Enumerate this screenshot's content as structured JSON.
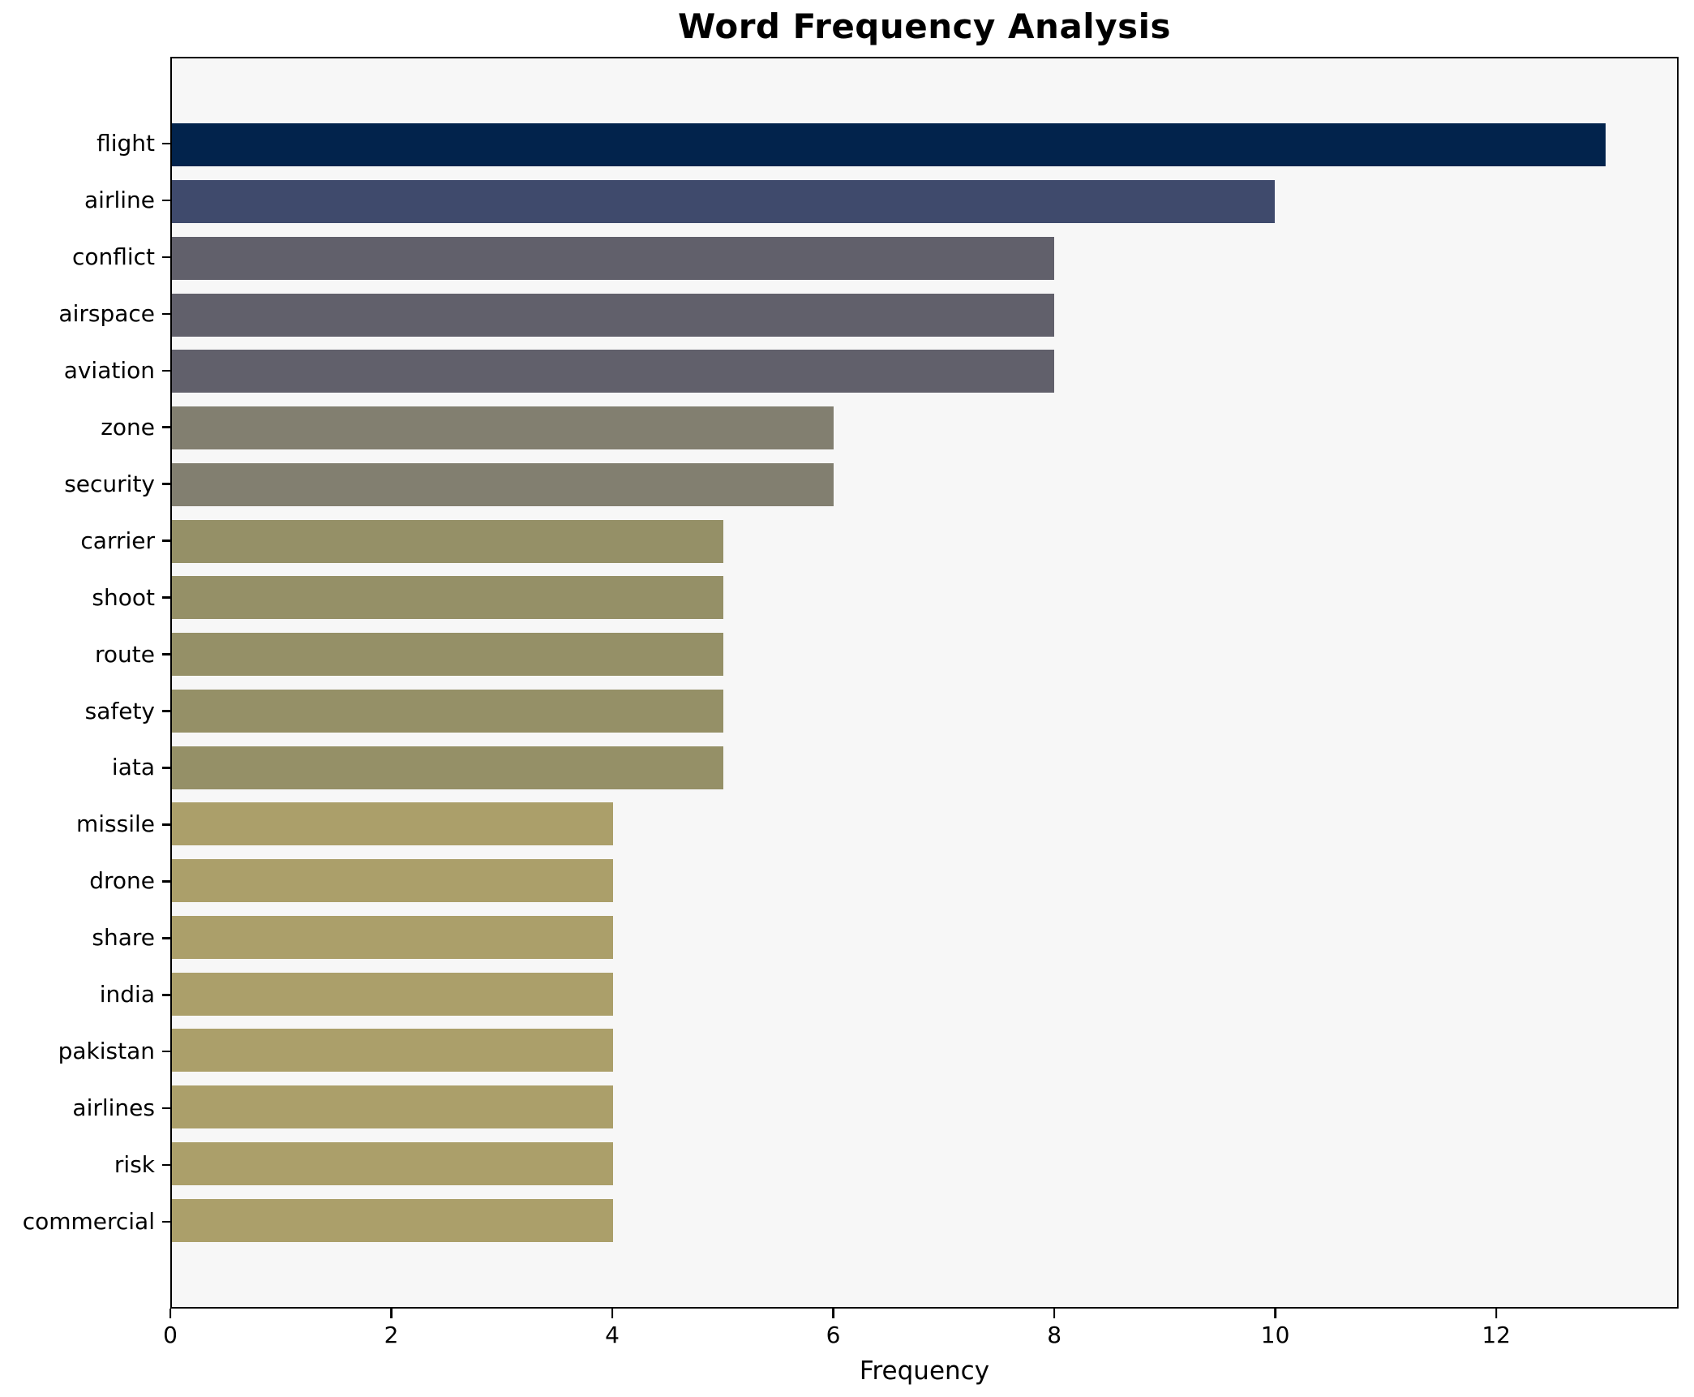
{
  "title": "Word Frequency Analysis",
  "xlabel": "Frequency",
  "colors": {
    "page_bg": "#ffffff",
    "plot_bg": "#f7f7f7",
    "axis": "#000000",
    "text": "#000000"
  },
  "chart_data": {
    "type": "bar",
    "orientation": "horizontal",
    "title": "Word Frequency Analysis",
    "xlabel": "Frequency",
    "ylabel": "",
    "grid": false,
    "legend": "none",
    "xlim": [
      0,
      13.65
    ],
    "xticks": [
      0,
      2,
      4,
      6,
      8,
      10,
      12
    ],
    "categories": [
      "flight",
      "airline",
      "conflict",
      "airspace",
      "aviation",
      "zone",
      "security",
      "carrier",
      "shoot",
      "route",
      "safety",
      "iata",
      "missile",
      "drone",
      "share",
      "india",
      "pakistan",
      "airlines",
      "risk",
      "commercial"
    ],
    "values": [
      13,
      10,
      8,
      8,
      8,
      6,
      6,
      5,
      5,
      5,
      5,
      5,
      4,
      4,
      4,
      4,
      4,
      4,
      4,
      4
    ],
    "bar_colors": [
      "#02234c",
      "#3f4a6c",
      "#61606b",
      "#61606b",
      "#61606b",
      "#827f70",
      "#827f70",
      "#959067",
      "#959067",
      "#959067",
      "#959067",
      "#959067",
      "#ab9f6a",
      "#ab9f6a",
      "#ab9f6a",
      "#ab9f6a",
      "#ab9f6a",
      "#ab9f6a",
      "#ab9f6a",
      "#ab9f6a"
    ],
    "colormap_note": "cividis reversed, darkest = highest frequency"
  }
}
